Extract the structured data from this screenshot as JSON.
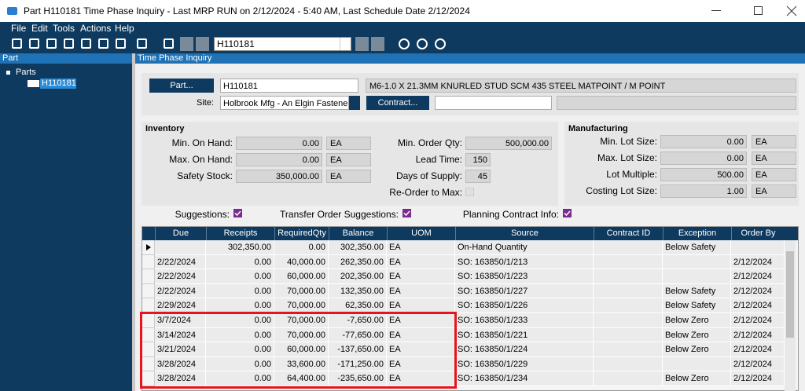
{
  "window": {
    "title": "Part H110181 Time Phase Inquiry  - Last MRP RUN on 2/12/2024 - 5:40 AM, Last Schedule Date  2/12/2024"
  },
  "menu": [
    "File",
    "Edit",
    "Tools",
    "Actions",
    "Help"
  ],
  "toolbar": {
    "part_combo": "H110181"
  },
  "left_panel": {
    "header": "Part",
    "tree": {
      "root": "Parts",
      "item": "H110181"
    }
  },
  "main": {
    "header": "Time Phase Inquiry",
    "part_button": "Part...",
    "part": "H110181",
    "description": "M6-1.0 X 21.3MM KNURLED STUD SCM 435 STEEL MATPOINT / M POINT",
    "site_label": "Site:",
    "site": "Holbrook Mfg - An Elgin Fastener D",
    "contract_button": "Contract...",
    "inventory": {
      "title": "Inventory",
      "left_fields": [
        {
          "label": "Min. On Hand:",
          "value": "0.00",
          "uom": "EA"
        },
        {
          "label": "Max. On Hand:",
          "value": "0.00",
          "uom": "EA"
        },
        {
          "label": "Safety Stock:",
          "value": "350,000.00",
          "uom": "EA"
        }
      ],
      "right_fields": [
        {
          "label": "Min. Order Qty:",
          "value": "500,000.00"
        },
        {
          "label": "Lead Time:",
          "value": "150"
        },
        {
          "label": "Days of Supply:",
          "value": "45"
        }
      ],
      "reorder_label": "Re-Order to Max:"
    },
    "manufacturing": {
      "title": "Manufacturing",
      "fields": [
        {
          "label": "Min. Lot Size:",
          "value": "0.00",
          "uom": "EA"
        },
        {
          "label": "Max. Lot Size:",
          "value": "0.00",
          "uom": "EA"
        },
        {
          "label": "Lot Multiple:",
          "value": "500.00",
          "uom": "EA"
        },
        {
          "label": "Costing Lot Size:",
          "value": "1.00",
          "uom": "EA"
        }
      ]
    },
    "checkboxes": [
      {
        "label": "Suggestions:",
        "checked": true
      },
      {
        "label": "Transfer Order Suggestions:",
        "checked": true
      },
      {
        "label": "Planning Contract Info:",
        "checked": true
      }
    ]
  },
  "grid": {
    "columns": [
      "Due",
      "Receipts",
      "RequiredQty",
      "Balance",
      "UOM",
      "Source",
      "Contract ID",
      "Exception",
      "Order By"
    ],
    "rows": [
      {
        "receipts": "302,350.00",
        "required": "0.00",
        "balance": "302,350.00",
        "uom": "EA",
        "source": "On-Hand Quantity",
        "exception": "Below Safety"
      },
      {
        "due": "2/22/2024",
        "receipts": "0.00",
        "required": "40,000.00",
        "balance": "262,350.00",
        "uom": "EA",
        "source": "SO: 163850/1/213",
        "order_by": "2/12/2024"
      },
      {
        "due": "2/22/2024",
        "receipts": "0.00",
        "required": "60,000.00",
        "balance": "202,350.00",
        "uom": "EA",
        "source": "SO: 163850/1/223",
        "order_by": "2/12/2024"
      },
      {
        "due": "2/22/2024",
        "receipts": "0.00",
        "required": "70,000.00",
        "balance": "132,350.00",
        "uom": "EA",
        "source": "SO: 163850/1/227",
        "exception": "Below Safety",
        "order_by": "2/12/2024"
      },
      {
        "due": "2/29/2024",
        "receipts": "0.00",
        "required": "70,000.00",
        "balance": "62,350.00",
        "uom": "EA",
        "source": "SO: 163850/1/226",
        "exception": "Below Safety",
        "order_by": "2/12/2024"
      },
      {
        "due": "3/7/2024",
        "receipts": "0.00",
        "required": "70,000.00",
        "balance": "-7,650.00",
        "uom": "EA",
        "source": "SO: 163850/1/233",
        "exception": "Below Zero",
        "order_by": "2/12/2024"
      },
      {
        "due": "3/14/2024",
        "receipts": "0.00",
        "required": "70,000.00",
        "balance": "-77,650.00",
        "uom": "EA",
        "source": "SO: 163850/1/221",
        "exception": "Below Zero",
        "order_by": "2/12/2024"
      },
      {
        "due": "3/21/2024",
        "receipts": "0.00",
        "required": "60,000.00",
        "balance": "-137,650.00",
        "uom": "EA",
        "source": "SO: 163850/1/224",
        "exception": "Below Zero",
        "order_by": "2/12/2024"
      },
      {
        "due": "3/28/2024",
        "receipts": "0.00",
        "required": "33,600.00",
        "balance": "-171,250.00",
        "uom": "EA",
        "source": "SO: 163850/1/229",
        "order_by": "2/12/2024"
      },
      {
        "due": "3/28/2024",
        "receipts": "0.00",
        "required": "64,400.00",
        "balance": "-235,650.00",
        "uom": "EA",
        "source": "SO: 163850/1/234",
        "exception": "Below Zero",
        "order_by": "2/12/2024"
      }
    ]
  }
}
